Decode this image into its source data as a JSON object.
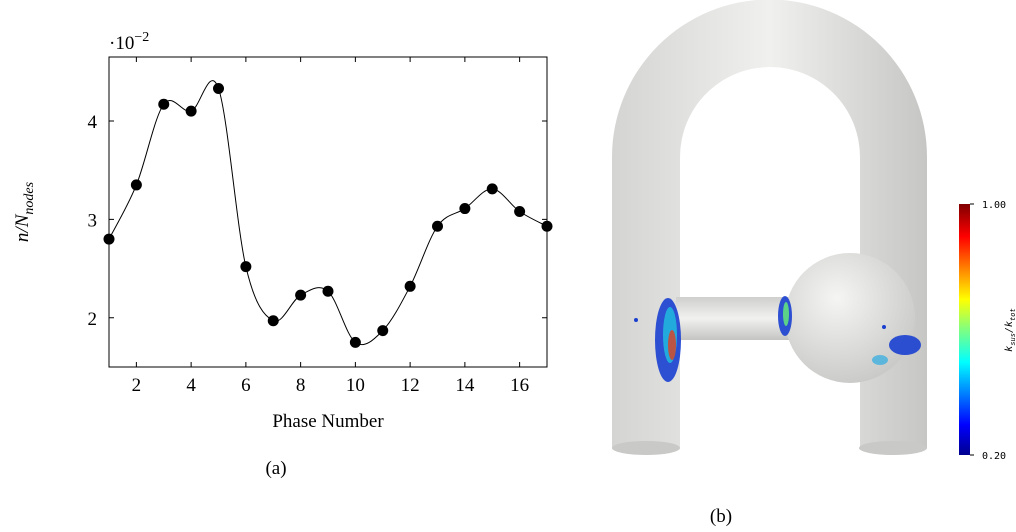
{
  "chart_data": {
    "type": "line",
    "caption": "(a)",
    "xlabel": "Phase Number",
    "ylabel": {
      "base": "n/N",
      "sub": "nodes"
    },
    "y_multiplier": {
      "base": "·10",
      "exp": "−2"
    },
    "x": [
      1,
      2,
      3,
      4,
      5,
      6,
      7,
      8,
      9,
      10,
      11,
      12,
      13,
      14,
      15,
      16,
      17
    ],
    "series": [
      {
        "color": "#000000",
        "values": [
          2.8,
          3.35,
          4.17,
          4.1,
          4.33,
          2.52,
          1.97,
          2.23,
          2.27,
          1.75,
          1.87,
          2.32,
          2.93,
          3.11,
          3.31,
          3.08,
          2.93
        ]
      }
    ],
    "xlim": [
      1,
      17
    ],
    "xticks": [
      2,
      4,
      6,
      8,
      10,
      12,
      14,
      16
    ],
    "ylim": [
      1.5,
      4.65
    ],
    "yticks": [
      2,
      3,
      4
    ],
    "smooth": true,
    "markers": true
  },
  "panel_b": {
    "caption": "(b)",
    "colorbar": {
      "range": [
        0.2,
        1
      ],
      "ticks": [
        {
          "value": 1,
          "label": "1.00"
        },
        {
          "value": 0.2,
          "label": "0.20"
        }
      ],
      "label": {
        "num": "k",
        "num_sub": "sus",
        "den": "k",
        "den_sub": "tot"
      }
    }
  }
}
